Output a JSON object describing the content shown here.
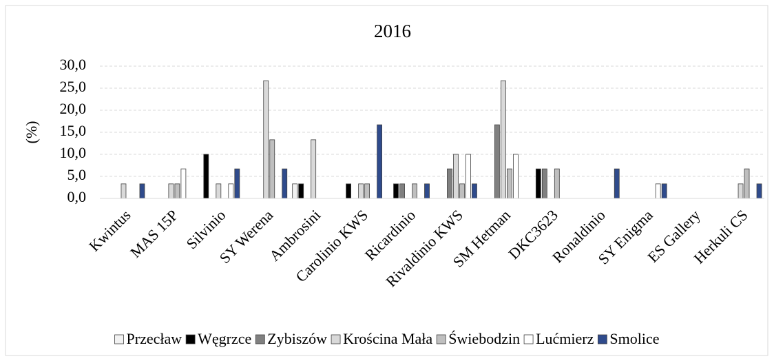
{
  "chart_data": {
    "type": "bar",
    "title": "2016",
    "y_label": "(%)",
    "categories": [
      "Kwintus",
      "MAS 15P",
      "Silvinio",
      "SY Werena",
      "Ambrosini",
      "Carolinio KWS",
      "Ricardinio",
      "Rivaldinio KWS",
      "SM Hetman",
      "DKC3623",
      "Ronaldinio",
      "SY Enigma",
      "ES Gallery",
      "Herkuli CS"
    ],
    "series": [
      {
        "name": "Przecław",
        "color": "#f2f2f2",
        "values": [
          0,
          0,
          0,
          0,
          3.3,
          0,
          0,
          0,
          0,
          0,
          0,
          0,
          0,
          0
        ]
      },
      {
        "name": "Węgrzce",
        "color": "#000000",
        "values": [
          0,
          0,
          10,
          0,
          3.3,
          3.3,
          3.3,
          0,
          0,
          6.7,
          0,
          0,
          0,
          0
        ]
      },
      {
        "name": "Zybiszów",
        "color": "#808080",
        "values": [
          0,
          0,
          0,
          0,
          0,
          0,
          3.3,
          6.7,
          16.7,
          6.7,
          0,
          0,
          0,
          0
        ]
      },
      {
        "name": "Krościna Mała",
        "color": "#d9d9d9",
        "values": [
          3.3,
          3.3,
          3.3,
          26.7,
          13.3,
          3.3,
          0,
          10,
          26.7,
          0,
          0,
          0,
          0,
          3.3
        ]
      },
      {
        "name": "Świebodzin",
        "color": "#bfbfbf",
        "values": [
          0,
          3.3,
          0,
          13.3,
          0,
          3.3,
          3.3,
          3.3,
          6.7,
          6.7,
          0,
          0,
          0,
          6.7
        ]
      },
      {
        "name": "Lućmierz",
        "color": "#ffffff",
        "values": [
          0,
          6.7,
          3.3,
          0,
          0,
          0,
          0,
          10,
          10,
          0,
          0,
          3.3,
          0,
          0
        ]
      },
      {
        "name": "Smolice",
        "color": "#2f4b8c",
        "values": [
          3.3,
          0,
          6.7,
          6.7,
          0,
          16.7,
          3.3,
          3.3,
          0,
          0,
          6.7,
          3.3,
          0,
          3.3
        ]
      }
    ],
    "ylim": [
      0,
      30
    ],
    "yticks": [
      {
        "value": 0,
        "label": "0,0"
      },
      {
        "value": 5,
        "label": "5,0"
      },
      {
        "value": 10,
        "label": "10,0"
      },
      {
        "value": 15,
        "label": "15,0"
      },
      {
        "value": 20,
        "label": "20,0"
      },
      {
        "value": 25,
        "label": "25,0"
      },
      {
        "value": 30,
        "label": "30,0"
      }
    ],
    "grid": true,
    "legend": "bottom"
  }
}
